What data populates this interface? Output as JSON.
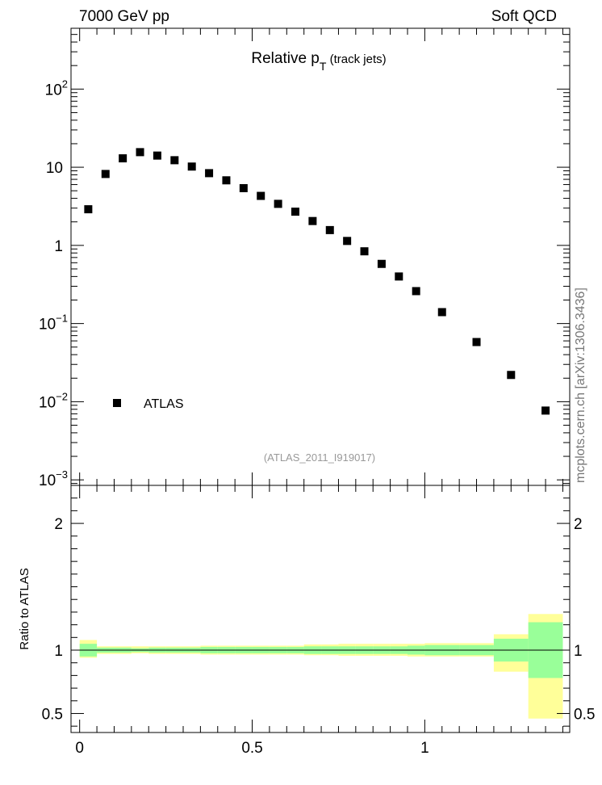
{
  "header": {
    "left": "7000 GeV pp",
    "right": "Soft QCD"
  },
  "side_label": "mcplots.cern.ch [arXiv:1306.3436]",
  "chart_data": [
    {
      "type": "scatter",
      "title": "Relative p",
      "title_sub": "T",
      "title_suffix": " (track jets)",
      "watermark": "(ATLAS_2011_I919017)",
      "legend": {
        "position": "bottom-left",
        "entries": [
          "ATLAS"
        ]
      },
      "y_scale": "log",
      "ylim": [
        0.00085,
        600
      ],
      "xlim": [
        -0.025,
        1.42
      ],
      "y_ticks": [
        {
          "value": 100,
          "base": "10",
          "exp": "2"
        },
        {
          "value": 10,
          "base": "10",
          "exp": ""
        },
        {
          "value": 1,
          "base": "1",
          "exp": ""
        },
        {
          "value": 0.1,
          "base": "10",
          "exp": "−1"
        },
        {
          "value": 0.01,
          "base": "10",
          "exp": "−2"
        },
        {
          "value": 0.001,
          "base": "10",
          "exp": "−3"
        }
      ],
      "series": [
        {
          "name": "ATLAS",
          "x": [
            0.025,
            0.075,
            0.125,
            0.175,
            0.225,
            0.275,
            0.325,
            0.375,
            0.425,
            0.475,
            0.525,
            0.575,
            0.625,
            0.675,
            0.725,
            0.775,
            0.825,
            0.875,
            0.925,
            0.975,
            1.05,
            1.15,
            1.25,
            1.35
          ],
          "y": [
            2.9,
            8.2,
            13.0,
            15.6,
            14.1,
            12.3,
            10.2,
            8.4,
            6.8,
            5.4,
            4.3,
            3.4,
            2.7,
            2.05,
            1.57,
            1.14,
            0.84,
            0.58,
            0.4,
            0.26,
            0.14,
            0.058,
            0.022,
            0.0077
          ]
        }
      ]
    },
    {
      "type": "area",
      "ylabel": "Ratio to ATLAS",
      "ylim": [
        0.35,
        2.3
      ],
      "xlim": [
        -0.025,
        1.42
      ],
      "y_ticks": [
        {
          "value": 0.5,
          "label": "0.5"
        },
        {
          "value": 1,
          "label": "1"
        },
        {
          "value": 2,
          "label": "2"
        }
      ],
      "x_ticks": [
        {
          "value": 0,
          "label": "0"
        },
        {
          "value": 0.5,
          "label": "0.5"
        },
        {
          "value": 1,
          "label": "1"
        }
      ],
      "bins": [
        [
          0.0,
          0.05
        ],
        [
          0.05,
          0.1
        ],
        [
          0.1,
          0.15
        ],
        [
          0.15,
          0.2
        ],
        [
          0.2,
          0.25
        ],
        [
          0.25,
          0.3
        ],
        [
          0.3,
          0.35
        ],
        [
          0.35,
          0.4
        ],
        [
          0.4,
          0.45
        ],
        [
          0.45,
          0.5
        ],
        [
          0.5,
          0.55
        ],
        [
          0.55,
          0.6
        ],
        [
          0.6,
          0.65
        ],
        [
          0.65,
          0.7
        ],
        [
          0.7,
          0.75
        ],
        [
          0.75,
          0.8
        ],
        [
          0.8,
          0.85
        ],
        [
          0.85,
          0.9
        ],
        [
          0.9,
          0.95
        ],
        [
          0.95,
          1.0
        ],
        [
          1.0,
          1.1
        ],
        [
          1.1,
          1.2
        ],
        [
          1.2,
          1.3
        ],
        [
          1.3,
          1.4
        ]
      ],
      "stat_band": {
        "color": "#99ff99",
        "low": [
          0.95,
          0.98,
          0.98,
          0.985,
          0.98,
          0.98,
          0.98,
          0.975,
          0.975,
          0.975,
          0.975,
          0.975,
          0.975,
          0.97,
          0.97,
          0.97,
          0.97,
          0.97,
          0.97,
          0.965,
          0.96,
          0.96,
          0.91,
          0.78
        ],
        "high": [
          1.05,
          1.02,
          1.02,
          1.015,
          1.02,
          1.02,
          1.02,
          1.025,
          1.025,
          1.025,
          1.025,
          1.025,
          1.025,
          1.03,
          1.03,
          1.03,
          1.03,
          1.03,
          1.03,
          1.035,
          1.04,
          1.04,
          1.09,
          1.22
        ]
      },
      "syst_band": {
        "color": "#ffff99",
        "low": [
          0.94,
          0.97,
          0.97,
          0.975,
          0.97,
          0.97,
          0.97,
          0.965,
          0.965,
          0.965,
          0.965,
          0.965,
          0.965,
          0.96,
          0.96,
          0.955,
          0.955,
          0.955,
          0.955,
          0.95,
          0.95,
          0.95,
          0.83,
          0.46
        ],
        "high": [
          1.08,
          1.03,
          1.03,
          1.03,
          1.03,
          1.03,
          1.03,
          1.035,
          1.035,
          1.035,
          1.035,
          1.035,
          1.035,
          1.045,
          1.045,
          1.05,
          1.05,
          1.05,
          1.05,
          1.05,
          1.055,
          1.055,
          1.125,
          1.285
        ]
      },
      "reference_line": 1
    }
  ]
}
